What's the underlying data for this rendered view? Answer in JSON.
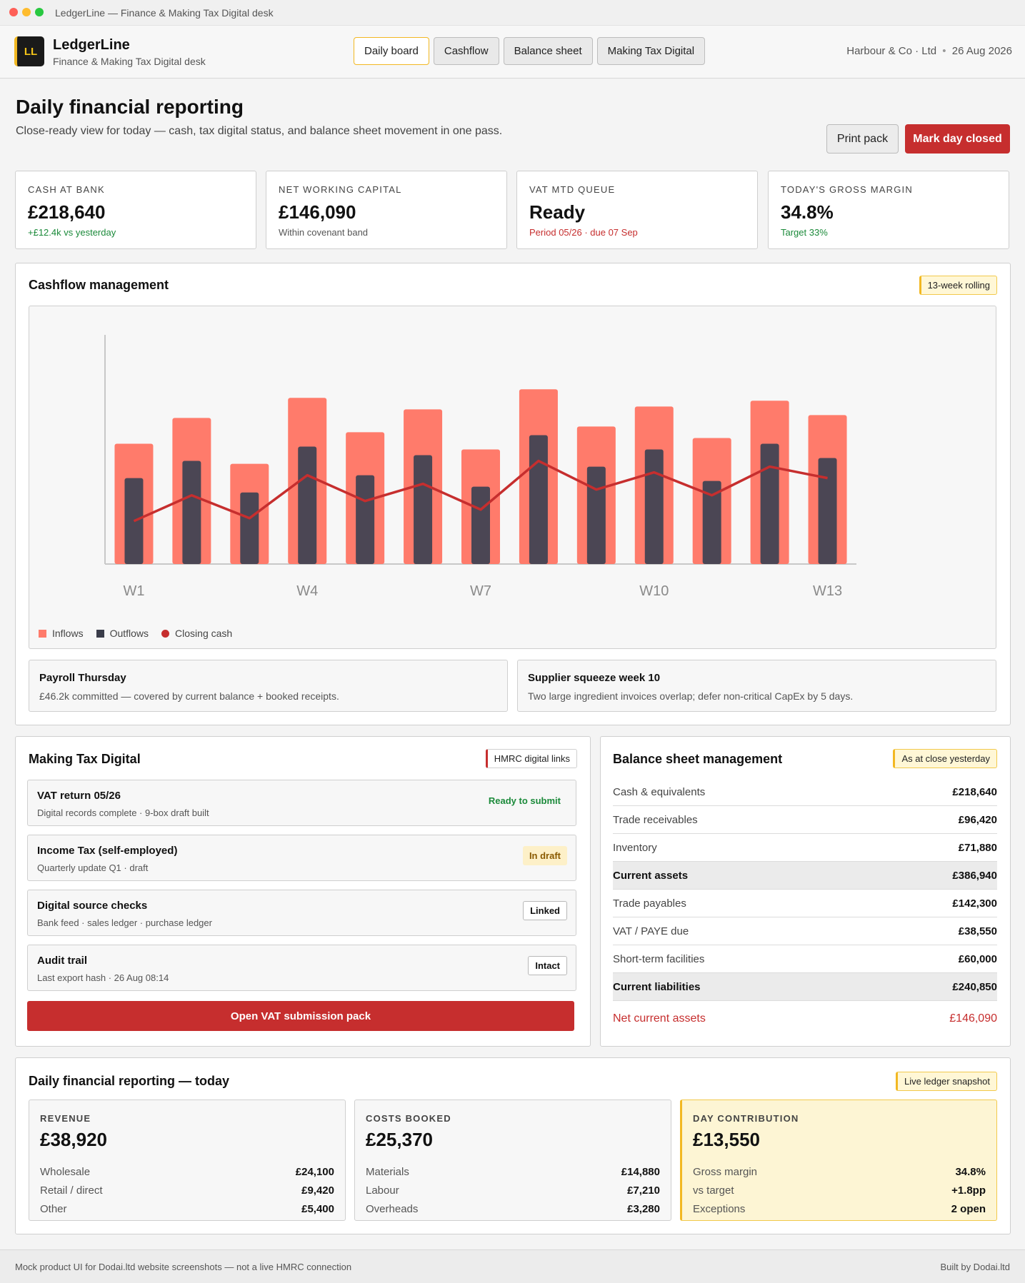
{
  "window": {
    "title": "LedgerLine — Finance & Making Tax Digital desk"
  },
  "brand": {
    "logo": "LL",
    "name": "LedgerLine",
    "subtitle": "Finance & Making Tax Digital desk"
  },
  "nav": {
    "tabs": [
      "Daily board",
      "Cashflow",
      "Balance sheet",
      "Making Tax Digital"
    ],
    "active": "Daily board"
  },
  "company": {
    "name": "Harbour & Co · Ltd",
    "separator": "•",
    "date": "26 Aug 2026"
  },
  "page": {
    "title": "Daily financial reporting",
    "subtitle": "Close-ready view for today — cash, tax digital status, and balance sheet movement in one pass.",
    "print_label": "Print pack",
    "close_label": "Mark day closed"
  },
  "kpis": [
    {
      "label": "CASH AT BANK",
      "value": "£218,640",
      "note": "+£12.4k vs yesterday",
      "tone": "green"
    },
    {
      "label": "NET WORKING CAPITAL",
      "value": "£146,090",
      "note": "Within covenant band",
      "tone": "grey"
    },
    {
      "label": "VAT MTD QUEUE",
      "value": "Ready",
      "note": "Period 05/26 · due 07 Sep",
      "tone": "red"
    },
    {
      "label": "TODAY'S GROSS MARGIN",
      "value": "34.8%",
      "note": "Target 33%",
      "tone": "green"
    }
  ],
  "cashflow": {
    "title": "Cashflow management",
    "badge": "13-week rolling",
    "notes": [
      {
        "title": "Payroll Thursday",
        "text": "£46.2k committed — covered by current balance + booked receipts."
      },
      {
        "title": "Supplier squeeze week 10",
        "text": "Two large ingredient invoices overlap; defer non-critical CapEx by 5 days."
      }
    ]
  },
  "chart_data": {
    "type": "bar",
    "categories": [
      "W1",
      "W2",
      "W3",
      "W4",
      "W5",
      "W6",
      "W7",
      "W8",
      "W9",
      "W10",
      "W11",
      "W12",
      "W13"
    ],
    "tick_labels": [
      "W1",
      "W4",
      "W7",
      "W10",
      "W13"
    ],
    "series": [
      {
        "name": "Inflows",
        "type": "bar",
        "color": "#ff7b6b",
        "values": [
          42,
          51,
          35,
          58,
          46,
          54,
          40,
          61,
          48,
          55,
          44,
          57,
          52
        ]
      },
      {
        "name": "Outflows",
        "type": "bar",
        "color": "#4b4654",
        "values": [
          30,
          36,
          25,
          41,
          31,
          38,
          27,
          45,
          34,
          40,
          29,
          42,
          37
        ]
      },
      {
        "name": "Closing cash",
        "type": "line",
        "color": "#c62e2e",
        "values": [
          15,
          24,
          16,
          31,
          22,
          28,
          19,
          36,
          26,
          32,
          24,
          34,
          30
        ]
      }
    ],
    "ylim": [
      0,
      80
    ],
    "grid": false,
    "legend": "bottom-left"
  },
  "mtd": {
    "title": "Making Tax Digital",
    "badge": "HMRC digital links",
    "items": [
      {
        "title": "VAT return 05/26",
        "detail": "Digital records complete · 9-box draft built",
        "status": "Ready to submit",
        "style": "green"
      },
      {
        "title": "Income Tax (self-employed)",
        "detail": "Quarterly update Q1 · draft",
        "status": "In draft",
        "style": "amber"
      },
      {
        "title": "Digital source checks",
        "detail": "Bank feed · sales ledger · purchase ledger",
        "status": "Linked",
        "style": "boxed"
      },
      {
        "title": "Audit trail",
        "detail": "Last export hash · 26 Aug 08:14",
        "status": "Intact",
        "style": "boxed"
      }
    ],
    "action": "Open VAT submission pack"
  },
  "balance": {
    "title": "Balance sheet management",
    "badge": "As at close yesterday",
    "rows": [
      {
        "label": "Cash & equivalents",
        "value": "£218,640",
        "kind": "item"
      },
      {
        "label": "Trade receivables",
        "value": "£96,420",
        "kind": "item"
      },
      {
        "label": "Inventory",
        "value": "£71,880",
        "kind": "item"
      },
      {
        "label": "Current assets",
        "value": "£386,940",
        "kind": "total"
      },
      {
        "label": "Trade payables",
        "value": "£142,300",
        "kind": "item"
      },
      {
        "label": "VAT / PAYE due",
        "value": "£38,550",
        "kind": "item"
      },
      {
        "label": "Short-term facilities",
        "value": "£60,000",
        "kind": "item"
      },
      {
        "label": "Current liabilities",
        "value": "£240,850",
        "kind": "total"
      },
      {
        "label": "Net current assets",
        "value": "£146,090",
        "kind": "net"
      }
    ]
  },
  "daily": {
    "title": "Daily financial reporting — today",
    "badge": "Live ledger snapshot",
    "cards": [
      {
        "label": "REVENUE",
        "value": "£38,920",
        "lines": [
          {
            "k": "Wholesale",
            "v": "£24,100"
          },
          {
            "k": "Retail / direct",
            "v": "£9,420"
          },
          {
            "k": "Other",
            "v": "£5,400"
          }
        ]
      },
      {
        "label": "COSTS BOOKED",
        "value": "£25,370",
        "lines": [
          {
            "k": "Materials",
            "v": "£14,880"
          },
          {
            "k": "Labour",
            "v": "£7,210"
          },
          {
            "k": "Overheads",
            "v": "£3,280"
          }
        ]
      },
      {
        "label": "DAY CONTRIBUTION",
        "value": "£13,550",
        "lines": [
          {
            "k": "Gross margin",
            "v": "34.8%"
          },
          {
            "k": "vs target",
            "v": "+1.8pp"
          },
          {
            "k": "Exceptions",
            "v": "2 open"
          }
        ]
      }
    ]
  },
  "footer": {
    "left": "Mock product UI for Dodai.ltd website screenshots — not a live HMRC connection",
    "right": "Built by Dodai.ltd"
  }
}
